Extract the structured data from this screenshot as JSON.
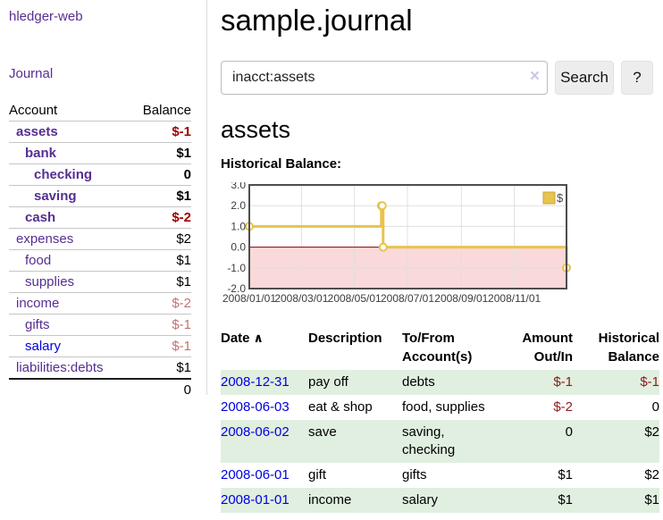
{
  "app": {
    "brand": "hledger-web",
    "nav_journal": "Journal"
  },
  "sidebar": {
    "headers": {
      "account": "Account",
      "balance": "Balance"
    },
    "accounts": [
      {
        "name": "assets",
        "depth": 1,
        "bold": true,
        "link_color": "purple",
        "balance": "$-1",
        "balance_class": "neg-strong"
      },
      {
        "name": "bank",
        "depth": 2,
        "bold": true,
        "link_color": "purple",
        "balance": "$1",
        "balance_class": ""
      },
      {
        "name": "checking",
        "depth": 3,
        "bold": true,
        "link_color": "purple",
        "balance": "0",
        "balance_class": ""
      },
      {
        "name": "saving",
        "depth": 3,
        "bold": true,
        "link_color": "purple",
        "balance": "$1",
        "balance_class": ""
      },
      {
        "name": "cash",
        "depth": 2,
        "bold": true,
        "link_color": "purple",
        "balance": "$-2",
        "balance_class": "neg-strong"
      },
      {
        "name": "expenses",
        "depth": 1,
        "bold": false,
        "link_color": "purple",
        "balance": "$2",
        "balance_class": ""
      },
      {
        "name": "food",
        "depth": 2,
        "bold": false,
        "link_color": "purple",
        "balance": "$1",
        "balance_class": ""
      },
      {
        "name": "supplies",
        "depth": 2,
        "bold": false,
        "link_color": "purple",
        "balance": "$1",
        "balance_class": ""
      },
      {
        "name": "income",
        "depth": 1,
        "bold": false,
        "link_color": "purple",
        "balance": "$-2",
        "balance_class": "neg-soft"
      },
      {
        "name": "gifts",
        "depth": 2,
        "bold": false,
        "link_color": "purple",
        "balance": "$-1",
        "balance_class": "neg-soft"
      },
      {
        "name": "salary",
        "depth": 2,
        "bold": false,
        "link_color": "blue",
        "balance": "$-1",
        "balance_class": "neg-soft"
      },
      {
        "name": "liabilities:debts",
        "depth": 1,
        "bold": false,
        "link_color": "purple",
        "balance": "$1",
        "balance_class": ""
      }
    ],
    "total": "0"
  },
  "main": {
    "title": "sample.journal",
    "search": {
      "value": "inacct:assets",
      "clear_icon": "×",
      "button_label": "Search",
      "help_label": "?"
    },
    "account_heading": "assets",
    "chart_label": "Historical Balance:"
  },
  "chart_data": {
    "type": "line",
    "step": true,
    "title": "Historical Balance",
    "series": [
      {
        "name": "$",
        "color": "#e8c34d",
        "points": [
          [
            "2008/01/01",
            1
          ],
          [
            "2008/06/01",
            2
          ],
          [
            "2008/06/02",
            2
          ],
          [
            "2008/06/03",
            0
          ],
          [
            "2008/12/31",
            -1
          ]
        ]
      }
    ],
    "x_range": [
      "2008/01/01",
      "2008/12/31"
    ],
    "ylim": [
      -2,
      3
    ],
    "yticks": [
      3.0,
      2.0,
      1.0,
      0.0,
      -1.0,
      -2.0
    ],
    "ytick_labels": [
      "3.0",
      "2.0",
      "1.0",
      "0.0",
      "-1.0",
      "-2.0"
    ],
    "xticks": [
      "2008/01/01",
      "2008/03/01",
      "2008/05/01",
      "2008/07/01",
      "2008/09/01",
      "2008/11/01"
    ],
    "grid": true,
    "legend_position": "top-right",
    "negative_region_color": "#f9d9d9",
    "zero_line_color": "#8b0000",
    "border_color": "#4d4d4d",
    "gridline_color": "#e0e0e0"
  },
  "register": {
    "headers": [
      "Date",
      "Description",
      "To/From Account(s)",
      "Amount Out/In",
      "Historical Balance"
    ],
    "sort_icon": "∧",
    "rows": [
      {
        "date": "2008-12-31",
        "description": "pay off",
        "accounts": "debts",
        "amount": "$-1",
        "amount_neg": true,
        "balance": "$-1",
        "balance_neg": true
      },
      {
        "date": "2008-06-03",
        "description": "eat & shop",
        "accounts": "food, supplies",
        "amount": "$-2",
        "amount_neg": true,
        "balance": "0",
        "balance_neg": false
      },
      {
        "date": "2008-06-02",
        "description": "save",
        "accounts": "saving,\nchecking",
        "amount": "0",
        "amount_neg": false,
        "balance": "$2",
        "balance_neg": false
      },
      {
        "date": "2008-06-01",
        "description": "gift",
        "accounts": "gifts",
        "amount": "$1",
        "amount_neg": false,
        "balance": "$2",
        "balance_neg": false
      },
      {
        "date": "2008-01-01",
        "description": "income",
        "accounts": "salary",
        "amount": "$1",
        "amount_neg": false,
        "balance": "$1",
        "balance_neg": false
      }
    ]
  }
}
